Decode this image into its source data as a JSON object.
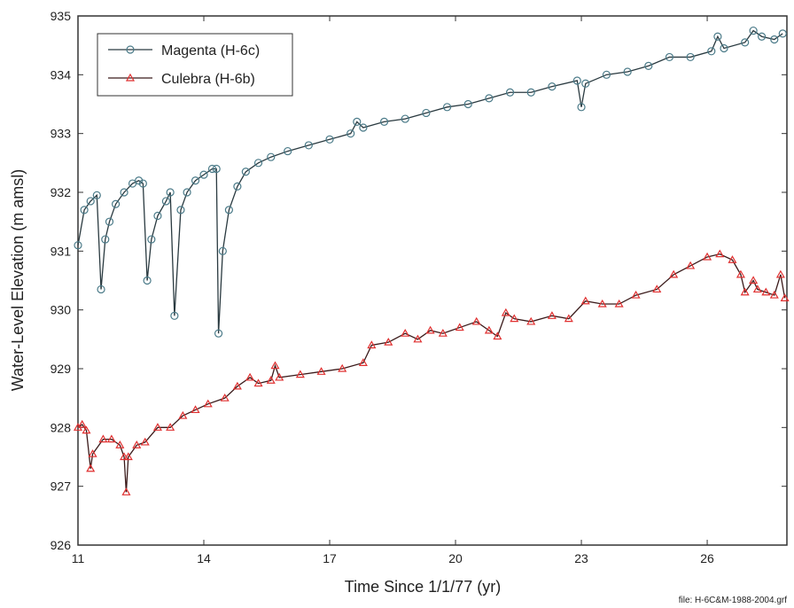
{
  "chart_data": {
    "type": "line",
    "x_label": "Time Since 1/1/77 (yr)",
    "y_label": "Water-Level Elevation (m amsl)",
    "footnote": "file: H-6C&M-1988-2004.grf",
    "xlim": [
      11,
      27.9
    ],
    "ylim": [
      926,
      935
    ],
    "xticks": [
      11,
      14,
      17,
      20,
      23,
      26
    ],
    "yticks": [
      926,
      927,
      928,
      929,
      930,
      931,
      932,
      933,
      934,
      935
    ],
    "legend": "top-left",
    "series": [
      {
        "name": "Magenta (H-6c)",
        "color": "#2a3a40",
        "marker_color": "#4a7a88",
        "marker": "circle",
        "x": [
          11.0,
          11.15,
          11.3,
          11.45,
          11.55,
          11.65,
          11.75,
          11.9,
          12.1,
          12.3,
          12.45,
          12.55,
          12.65,
          12.75,
          12.9,
          13.1,
          13.2,
          13.3,
          13.45,
          13.6,
          13.8,
          14.0,
          14.2,
          14.3,
          14.35,
          14.45,
          14.6,
          14.8,
          15.0,
          15.3,
          15.6,
          16.0,
          16.5,
          17.0,
          17.5,
          17.65,
          17.8,
          18.3,
          18.8,
          19.3,
          19.8,
          20.3,
          20.8,
          21.3,
          21.8,
          22.3,
          22.9,
          23.0,
          23.1,
          23.6,
          24.1,
          24.6,
          25.1,
          25.6,
          26.1,
          26.25,
          26.4,
          26.9,
          27.1,
          27.3,
          27.6,
          27.8
        ],
        "values": [
          931.1,
          931.7,
          931.85,
          931.95,
          930.35,
          931.2,
          931.5,
          931.8,
          932.0,
          932.15,
          932.2,
          932.15,
          930.5,
          931.2,
          931.6,
          931.85,
          932.0,
          929.9,
          931.7,
          932.0,
          932.2,
          932.3,
          932.4,
          932.4,
          929.6,
          931.0,
          931.7,
          932.1,
          932.35,
          932.5,
          932.6,
          932.7,
          932.8,
          932.9,
          933.0,
          933.2,
          933.1,
          933.2,
          933.25,
          933.35,
          933.45,
          933.5,
          933.6,
          933.7,
          933.7,
          933.8,
          933.9,
          933.45,
          933.85,
          934.0,
          934.05,
          934.15,
          934.3,
          934.3,
          934.4,
          934.65,
          934.45,
          934.55,
          934.75,
          934.65,
          934.6,
          934.7
        ]
      },
      {
        "name": "Culebra (H-6b)",
        "color": "#3a1a1a",
        "marker_color": "#e03030",
        "marker": "triangle",
        "x": [
          11.0,
          11.1,
          11.2,
          11.3,
          11.35,
          11.6,
          11.8,
          12.0,
          12.1,
          12.15,
          12.2,
          12.4,
          12.6,
          12.9,
          13.2,
          13.5,
          13.8,
          14.1,
          14.5,
          14.8,
          15.1,
          15.3,
          15.6,
          15.7,
          15.8,
          16.3,
          16.8,
          17.3,
          17.8,
          18.0,
          18.4,
          18.8,
          19.1,
          19.4,
          19.7,
          20.1,
          20.5,
          20.8,
          21.0,
          21.2,
          21.4,
          21.8,
          22.3,
          22.7,
          23.1,
          23.5,
          23.9,
          24.3,
          24.8,
          25.2,
          25.6,
          26.0,
          26.3,
          26.6,
          26.8,
          26.9,
          27.1,
          27.2,
          27.4,
          27.6,
          27.75,
          27.85
        ],
        "values": [
          928.0,
          928.05,
          927.95,
          927.3,
          927.55,
          927.8,
          927.8,
          927.7,
          927.5,
          926.9,
          927.5,
          927.7,
          927.75,
          928.0,
          928.0,
          928.2,
          928.3,
          928.4,
          928.5,
          928.7,
          928.85,
          928.75,
          928.8,
          929.05,
          928.85,
          928.9,
          928.95,
          929.0,
          929.1,
          929.4,
          929.45,
          929.6,
          929.5,
          929.65,
          929.6,
          929.7,
          929.8,
          929.65,
          929.55,
          929.95,
          929.85,
          929.8,
          929.9,
          929.85,
          930.15,
          930.1,
          930.1,
          930.25,
          930.35,
          930.6,
          930.75,
          930.9,
          930.95,
          930.85,
          930.6,
          930.3,
          930.5,
          930.35,
          930.3,
          930.25,
          930.6,
          930.2
        ]
      }
    ]
  }
}
